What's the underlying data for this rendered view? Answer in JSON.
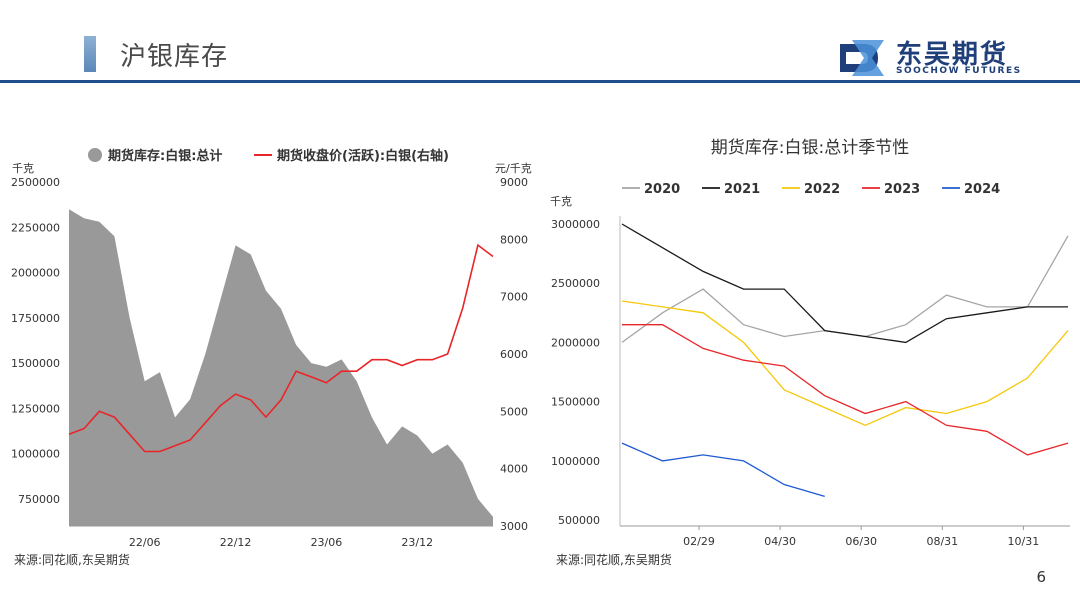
{
  "header": {
    "title": "沪银库存",
    "logo_cn": "东吴期货",
    "logo_en": "SOOCHOW FUTURES"
  },
  "left_source": "来源:同花顺,东吴期货",
  "right_source": "来源:同花顺,东吴期货",
  "page_number": "6",
  "chart_data": [
    {
      "type": "area+line",
      "title": "",
      "legend": [
        "期货库存:白银:总计",
        "期货收盘价(活跃):白银(右轴)"
      ],
      "legend_placement": "top",
      "ylabel_left": "千克",
      "ylabel_right": "元/千克",
      "ylim_left": [
        600000,
        2500000
      ],
      "ylim_right": [
        3000,
        9000
      ],
      "yticks_left": [
        "2500000",
        "2250000",
        "2000000",
        "1750000",
        "1500000",
        "1250000",
        "1000000",
        "750000"
      ],
      "yticks_right": [
        "9000",
        "8000",
        "7000",
        "6000",
        "5000",
        "4000",
        "3000"
      ],
      "xticks": [
        "22/06",
        "22/12",
        "23/06",
        "23/12"
      ],
      "colors": {
        "inventory": "#999999",
        "price": "#e8262a"
      },
      "series": [
        {
          "name": "期货库存:白银:总计",
          "kind": "area",
          "x": [
            "2022-01",
            "2022-02",
            "2022-03",
            "2022-04",
            "2022-05",
            "2022-06",
            "2022-07",
            "2022-08",
            "2022-09",
            "2022-10",
            "2022-11",
            "2022-12",
            "2023-01",
            "2023-02",
            "2023-03",
            "2023-04",
            "2023-05",
            "2023-06",
            "2023-07",
            "2023-08",
            "2023-09",
            "2023-10",
            "2023-11",
            "2023-12",
            "2024-01",
            "2024-02",
            "2024-03",
            "2024-04",
            "2024-05"
          ],
          "values": [
            2350000,
            2300000,
            2280000,
            2200000,
            1750000,
            1400000,
            1450000,
            1200000,
            1300000,
            1550000,
            1850000,
            2150000,
            2100000,
            1900000,
            1800000,
            1600000,
            1500000,
            1480000,
            1520000,
            1400000,
            1200000,
            1050000,
            1150000,
            1100000,
            1000000,
            1050000,
            950000,
            750000,
            650000
          ]
        },
        {
          "name": "期货收盘价(活跃):白银(右轴)",
          "kind": "line",
          "axis": "right",
          "x": [
            "2022-01",
            "2022-02",
            "2022-03",
            "2022-04",
            "2022-05",
            "2022-06",
            "2022-07",
            "2022-08",
            "2022-09",
            "2022-10",
            "2022-11",
            "2022-12",
            "2023-01",
            "2023-02",
            "2023-03",
            "2023-04",
            "2023-05",
            "2023-06",
            "2023-07",
            "2023-08",
            "2023-09",
            "2023-10",
            "2023-11",
            "2023-12",
            "2024-01",
            "2024-02",
            "2024-03",
            "2024-04",
            "2024-05"
          ],
          "values": [
            4600,
            4700,
            5000,
            4900,
            4600,
            4300,
            4300,
            4400,
            4500,
            4800,
            5100,
            5300,
            5200,
            4900,
            5200,
            5700,
            5600,
            5500,
            5700,
            5700,
            5900,
            5900,
            5800,
            5900,
            5900,
            6000,
            6800,
            7900,
            7700
          ]
        }
      ]
    },
    {
      "type": "line",
      "title": "期货库存:白银:总计季节性",
      "legend_placement": "top",
      "ylabel": "千克",
      "ylim": [
        450000,
        3000000
      ],
      "yticks": [
        "3000000",
        "2500000",
        "2000000",
        "1500000",
        "1000000",
        "500000"
      ],
      "xticks": [
        "02/29",
        "04/30",
        "06/30",
        "08/31",
        "10/31"
      ],
      "x": [
        "01",
        "02",
        "03",
        "04",
        "05",
        "06",
        "07",
        "08",
        "09",
        "10",
        "11",
        "12"
      ],
      "series": [
        {
          "name": "2020",
          "color": "#a6a6a6",
          "values": [
            2000000,
            2250000,
            2450000,
            2150000,
            2050000,
            2100000,
            2050000,
            2150000,
            2400000,
            2300000,
            2300000,
            2900000
          ]
        },
        {
          "name": "2021",
          "color": "#1a1a1a",
          "values": [
            3000000,
            2800000,
            2600000,
            2450000,
            2450000,
            2100000,
            2050000,
            2000000,
            2200000,
            2250000,
            2300000,
            2300000
          ]
        },
        {
          "name": "2022",
          "color": "#f5c80a",
          "values": [
            2350000,
            2300000,
            2250000,
            2000000,
            1600000,
            1450000,
            1300000,
            1450000,
            1400000,
            1500000,
            1700000,
            2100000
          ]
        },
        {
          "name": "2023",
          "color": "#e8262a",
          "values": [
            2150000,
            2150000,
            1950000,
            1850000,
            1800000,
            1550000,
            1400000,
            1500000,
            1300000,
            1250000,
            1050000,
            1150000
          ]
        },
        {
          "name": "2024",
          "color": "#1f5ad1",
          "values": [
            1150000,
            1000000,
            1050000,
            1000000,
            800000,
            700000,
            null,
            null,
            null,
            null,
            null,
            null
          ]
        }
      ]
    }
  ]
}
